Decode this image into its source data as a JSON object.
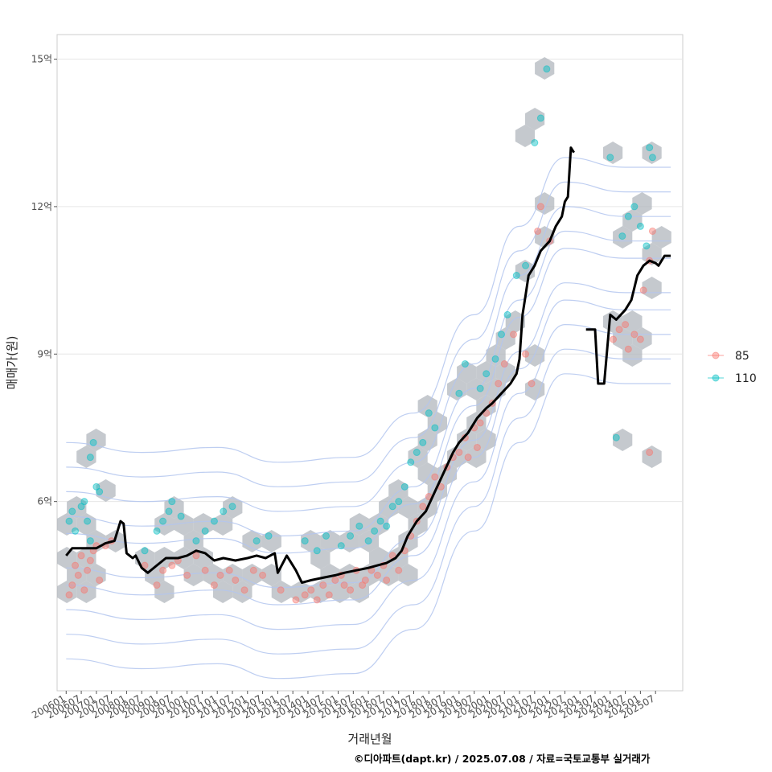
{
  "caption": "©디아파트(dapt.kr) / 2025.07.08 / 자료=국토교통부 실거래가",
  "colors": {
    "s85": "#f8766d",
    "s110": "#00bfc4",
    "line": "#000000",
    "hex": "#aeb4bb",
    "contour": "#b3c6ee",
    "grid": "#e6e6e6",
    "panel_border": "#cccccc"
  },
  "chart_data": {
    "type": "scatter",
    "xlabel": "거래년월",
    "ylabel": "매매가(원)",
    "xlim": [
      2005.7,
      2026.4
    ],
    "ylim": [
      2.15,
      15.5
    ],
    "x_ticks": [
      "200601",
      "200607",
      "200701",
      "200707",
      "200801",
      "200807",
      "200901",
      "200907",
      "201001",
      "201007",
      "201101",
      "201107",
      "201201",
      "201207",
      "201301",
      "201307",
      "201401",
      "201407",
      "201501",
      "201507",
      "201601",
      "201607",
      "201701",
      "201707",
      "201801",
      "201807",
      "201901",
      "201907",
      "202001",
      "202007",
      "202101",
      "202107",
      "202201",
      "202207",
      "202301",
      "202307",
      "202401",
      "202407",
      "202501",
      "202507"
    ],
    "y_ticks": [
      {
        "value": 6,
        "label": "6억"
      },
      {
        "value": 9,
        "label": "9억"
      },
      {
        "value": 12,
        "label": "12억"
      },
      {
        "value": 15,
        "label": "15억"
      }
    ],
    "legend_position": "right",
    "grid": true,
    "series": [
      {
        "name": "85",
        "points": [
          [
            2006.1,
            4.1
          ],
          [
            2006.2,
            4.3
          ],
          [
            2006.3,
            4.7
          ],
          [
            2006.4,
            4.5
          ],
          [
            2006.5,
            4.9
          ],
          [
            2006.6,
            4.2
          ],
          [
            2006.7,
            4.6
          ],
          [
            2006.8,
            4.8
          ],
          [
            2006.9,
            5.0
          ],
          [
            2007.0,
            5.1
          ],
          [
            2007.1,
            4.4
          ],
          [
            2007.3,
            5.1
          ],
          [
            2007.5,
            5.2
          ],
          [
            2008.6,
            4.7
          ],
          [
            2009.0,
            4.3
          ],
          [
            2009.2,
            4.6
          ],
          [
            2009.5,
            4.7
          ],
          [
            2009.7,
            4.8
          ],
          [
            2010.0,
            4.5
          ],
          [
            2010.3,
            4.9
          ],
          [
            2010.6,
            4.6
          ],
          [
            2010.9,
            4.3
          ],
          [
            2011.1,
            4.5
          ],
          [
            2011.4,
            4.6
          ],
          [
            2011.6,
            4.4
          ],
          [
            2011.9,
            4.2
          ],
          [
            2012.2,
            4.6
          ],
          [
            2012.5,
            4.5
          ],
          [
            2013.1,
            4.2
          ],
          [
            2013.6,
            4.0
          ],
          [
            2013.9,
            4.1
          ],
          [
            2014.1,
            4.2
          ],
          [
            2014.3,
            4.0
          ],
          [
            2014.5,
            4.3
          ],
          [
            2014.7,
            4.1
          ],
          [
            2014.9,
            4.4
          ],
          [
            2015.1,
            4.5
          ],
          [
            2015.2,
            4.3
          ],
          [
            2015.4,
            4.2
          ],
          [
            2015.6,
            4.6
          ],
          [
            2015.8,
            4.3
          ],
          [
            2015.9,
            4.4
          ],
          [
            2016.1,
            4.6
          ],
          [
            2016.3,
            4.5
          ],
          [
            2016.5,
            4.7
          ],
          [
            2016.6,
            4.4
          ],
          [
            2016.8,
            4.9
          ],
          [
            2017.0,
            4.6
          ],
          [
            2017.2,
            5.0
          ],
          [
            2017.4,
            5.3
          ],
          [
            2017.6,
            5.6
          ],
          [
            2017.8,
            5.9
          ],
          [
            2018.0,
            6.1
          ],
          [
            2018.2,
            6.5
          ],
          [
            2018.4,
            6.3
          ],
          [
            2018.6,
            6.7
          ],
          [
            2018.8,
            6.9
          ],
          [
            2019.0,
            7.0
          ],
          [
            2019.2,
            7.3
          ],
          [
            2019.3,
            6.9
          ],
          [
            2019.5,
            7.5
          ],
          [
            2019.6,
            7.1
          ],
          [
            2019.7,
            7.6
          ],
          [
            2019.9,
            7.8
          ],
          [
            2020.1,
            8.0
          ],
          [
            2020.3,
            8.4
          ],
          [
            2020.5,
            8.8
          ],
          [
            2020.8,
            9.4
          ],
          [
            2021.2,
            9.0
          ],
          [
            2021.4,
            8.4
          ],
          [
            2021.6,
            11.5
          ],
          [
            2021.7,
            12.0
          ],
          [
            2022.0,
            11.3
          ],
          [
            2024.1,
            9.3
          ],
          [
            2024.3,
            9.5
          ],
          [
            2024.5,
            9.6
          ],
          [
            2024.6,
            9.1
          ],
          [
            2024.8,
            9.4
          ],
          [
            2025.0,
            9.3
          ],
          [
            2025.1,
            10.3
          ],
          [
            2025.3,
            10.9
          ],
          [
            2025.4,
            11.5
          ],
          [
            2025.3,
            7.0
          ]
        ]
      },
      {
        "name": "110",
        "points": [
          [
            2006.1,
            5.6
          ],
          [
            2006.2,
            5.8
          ],
          [
            2006.3,
            5.4
          ],
          [
            2006.5,
            5.9
          ],
          [
            2006.6,
            6.0
          ],
          [
            2006.7,
            5.6
          ],
          [
            2006.8,
            5.2
          ],
          [
            2006.8,
            6.9
          ],
          [
            2006.9,
            7.2
          ],
          [
            2007.0,
            6.3
          ],
          [
            2007.1,
            6.2
          ],
          [
            2008.6,
            5.0
          ],
          [
            2009.0,
            5.4
          ],
          [
            2009.2,
            5.6
          ],
          [
            2009.4,
            5.8
          ],
          [
            2009.5,
            6.0
          ],
          [
            2009.8,
            5.7
          ],
          [
            2010.3,
            5.2
          ],
          [
            2010.6,
            5.4
          ],
          [
            2010.9,
            5.6
          ],
          [
            2011.2,
            5.8
          ],
          [
            2011.5,
            5.9
          ],
          [
            2012.3,
            5.2
          ],
          [
            2012.7,
            5.3
          ],
          [
            2013.9,
            5.2
          ],
          [
            2014.3,
            5.0
          ],
          [
            2014.6,
            5.3
          ],
          [
            2015.1,
            5.1
          ],
          [
            2015.4,
            5.3
          ],
          [
            2015.7,
            5.5
          ],
          [
            2016.0,
            5.2
          ],
          [
            2016.2,
            5.4
          ],
          [
            2016.4,
            5.6
          ],
          [
            2016.6,
            5.5
          ],
          [
            2016.8,
            5.9
          ],
          [
            2017.0,
            6.0
          ],
          [
            2017.2,
            6.3
          ],
          [
            2017.4,
            6.8
          ],
          [
            2017.6,
            7.0
          ],
          [
            2017.8,
            7.2
          ],
          [
            2018.0,
            7.8
          ],
          [
            2018.2,
            7.5
          ],
          [
            2019.0,
            8.2
          ],
          [
            2019.2,
            8.8
          ],
          [
            2019.7,
            8.3
          ],
          [
            2019.9,
            8.6
          ],
          [
            2020.2,
            8.9
          ],
          [
            2020.4,
            9.4
          ],
          [
            2020.6,
            9.8
          ],
          [
            2020.9,
            10.6
          ],
          [
            2021.2,
            10.8
          ],
          [
            2021.5,
            13.3
          ],
          [
            2021.7,
            13.8
          ],
          [
            2021.9,
            14.8
          ],
          [
            2024.0,
            13.0
          ],
          [
            2024.2,
            7.3
          ],
          [
            2024.4,
            11.4
          ],
          [
            2024.6,
            11.8
          ],
          [
            2024.8,
            12.0
          ],
          [
            2025.0,
            11.6
          ],
          [
            2025.2,
            11.2
          ],
          [
            2025.3,
            13.2
          ],
          [
            2025.4,
            13.0
          ]
        ]
      }
    ],
    "moving_average": [
      [
        [
          2006.0,
          4.9
        ],
        [
          2006.2,
          5.05
        ],
        [
          2006.5,
          5.05
        ],
        [
          2007.0,
          5.05
        ],
        [
          2007.3,
          5.15
        ],
        [
          2007.6,
          5.2
        ],
        [
          2007.8,
          5.6
        ],
        [
          2007.9,
          5.55
        ],
        [
          2008.0,
          4.95
        ],
        [
          2008.2,
          4.85
        ],
        [
          2008.3,
          4.9
        ],
        [
          2008.5,
          4.65
        ],
        [
          2008.7,
          4.55
        ],
        [
          2009.0,
          4.7
        ],
        [
          2009.3,
          4.85
        ],
        [
          2009.7,
          4.85
        ],
        [
          2010.0,
          4.9
        ],
        [
          2010.3,
          5.0
        ],
        [
          2010.6,
          4.95
        ],
        [
          2010.9,
          4.8
        ],
        [
          2011.2,
          4.85
        ],
        [
          2011.6,
          4.8
        ],
        [
          2012.0,
          4.85
        ],
        [
          2012.3,
          4.9
        ],
        [
          2012.6,
          4.85
        ],
        [
          2012.9,
          4.95
        ],
        [
          2013.0,
          4.55
        ],
        [
          2013.3,
          4.9
        ],
        [
          2013.6,
          4.6
        ],
        [
          2013.8,
          4.35
        ],
        [
          2014.1,
          4.4
        ],
        [
          2014.5,
          4.45
        ],
        [
          2014.9,
          4.5
        ],
        [
          2015.2,
          4.55
        ],
        [
          2015.6,
          4.6
        ],
        [
          2016.0,
          4.65
        ],
        [
          2016.3,
          4.7
        ],
        [
          2016.6,
          4.75
        ],
        [
          2016.9,
          4.85
        ],
        [
          2017.1,
          5.0
        ],
        [
          2017.3,
          5.3
        ],
        [
          2017.6,
          5.6
        ],
        [
          2017.9,
          5.8
        ],
        [
          2018.2,
          6.2
        ],
        [
          2018.5,
          6.6
        ],
        [
          2018.8,
          7.0
        ],
        [
          2019.0,
          7.2
        ],
        [
          2019.3,
          7.4
        ],
        [
          2019.6,
          7.7
        ],
        [
          2019.9,
          7.9
        ],
        [
          2020.1,
          8.0
        ],
        [
          2020.4,
          8.2
        ],
        [
          2020.7,
          8.4
        ],
        [
          2020.9,
          8.6
        ],
        [
          2021.0,
          8.9
        ],
        [
          2021.1,
          9.8
        ],
        [
          2021.2,
          10.2
        ],
        [
          2021.3,
          10.6
        ],
        [
          2021.5,
          10.8
        ],
        [
          2021.7,
          11.1
        ],
        [
          2022.0,
          11.3
        ],
        [
          2022.2,
          11.6
        ],
        [
          2022.4,
          11.8
        ],
        [
          2022.5,
          12.1
        ],
        [
          2022.6,
          12.2
        ],
        [
          2022.7,
          13.2
        ],
        [
          2022.8,
          13.1
        ]
      ],
      [
        [
          2023.2,
          9.5
        ],
        [
          2023.5,
          9.5
        ],
        [
          2023.6,
          8.4
        ],
        [
          2023.8,
          8.4
        ],
        [
          2024.0,
          9.8
        ],
        [
          2024.2,
          9.7
        ],
        [
          2024.5,
          9.9
        ],
        [
          2024.7,
          10.1
        ],
        [
          2024.9,
          10.6
        ],
        [
          2025.1,
          10.8
        ],
        [
          2025.3,
          10.9
        ],
        [
          2025.5,
          10.85
        ],
        [
          2025.6,
          10.8
        ],
        [
          2025.8,
          11.0
        ],
        [
          2026.0,
          11.0
        ]
      ]
    ]
  }
}
